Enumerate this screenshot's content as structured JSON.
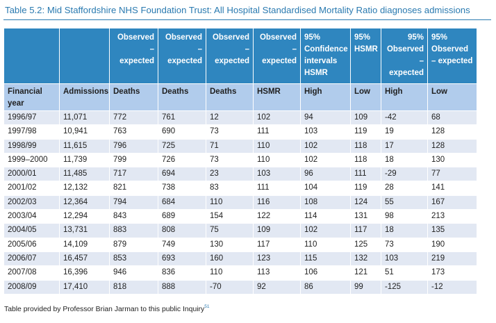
{
  "caption": "Table 5.2: Mid Staffordshire NHS Foundation Trust: All Hospital Standardised Mortality Ratio diagnoses admissions",
  "header_top": [
    "",
    "",
    "Observed – expected",
    "Observed – expected",
    "Observed – expected",
    "Observed – expected",
    "95% Confidence intervals HSMR",
    "95% HSMR",
    "95% Observed – expected",
    "95% Observed – expected"
  ],
  "header_sub": [
    "Financial year",
    "Admissions",
    "Deaths",
    "Deaths",
    "Deaths",
    "HSMR",
    "High",
    "Low",
    "High",
    "Low"
  ],
  "rows": [
    [
      "1996/97",
      "11,071",
      "772",
      "761",
      "12",
      "102",
      "94",
      "109",
      "-42",
      "68"
    ],
    [
      "1997/98",
      "10,941",
      "763",
      "690",
      "73",
      "111",
      "103",
      "119",
      "19",
      "128"
    ],
    [
      "1998/99",
      "11,615",
      "796",
      "725",
      "71",
      "110",
      "102",
      "118",
      "17",
      "128"
    ],
    [
      "1999–2000",
      "11,739",
      "799",
      "726",
      "73",
      "110",
      "102",
      "118",
      "18",
      "130"
    ],
    [
      "2000/01",
      "11,485",
      "717",
      "694",
      "23",
      "103",
      "96",
      "111",
      "-29",
      "77"
    ],
    [
      "2001/02",
      "12,132",
      "821",
      "738",
      "83",
      "111",
      "104",
      "119",
      "28",
      "141"
    ],
    [
      "2002/03",
      "12,364",
      "794",
      "684",
      "110",
      "116",
      "108",
      "124",
      "55",
      "167"
    ],
    [
      "2003/04",
      "12,294",
      "843",
      "689",
      "154",
      "122",
      "114",
      "131",
      "98",
      "213"
    ],
    [
      "2004/05",
      "13,731",
      "883",
      "808",
      "75",
      "109",
      "102",
      "117",
      "18",
      "135"
    ],
    [
      "2005/06",
      "14,109",
      "879",
      "749",
      "130",
      "117",
      "110",
      "125",
      "73",
      "190"
    ],
    [
      "2006/07",
      "16,457",
      "853",
      "693",
      "160",
      "123",
      "115",
      "132",
      "103",
      "219"
    ],
    [
      "2007/08",
      "16,396",
      "946",
      "836",
      "110",
      "113",
      "106",
      "121",
      "51",
      "173"
    ],
    [
      "2008/09",
      "17,410",
      "818",
      "888",
      "-70",
      "92",
      "86",
      "99",
      "-125",
      "-12"
    ]
  ],
  "footnote": "Table provided by Professor Brian Jarman to this public Inquiry",
  "footnote_ref": "51",
  "colors": {
    "header_dark": "#2f86bf",
    "header_light": "#b1ccec",
    "row_stripe": "#e2e8f3",
    "caption": "#2a7ab0"
  }
}
